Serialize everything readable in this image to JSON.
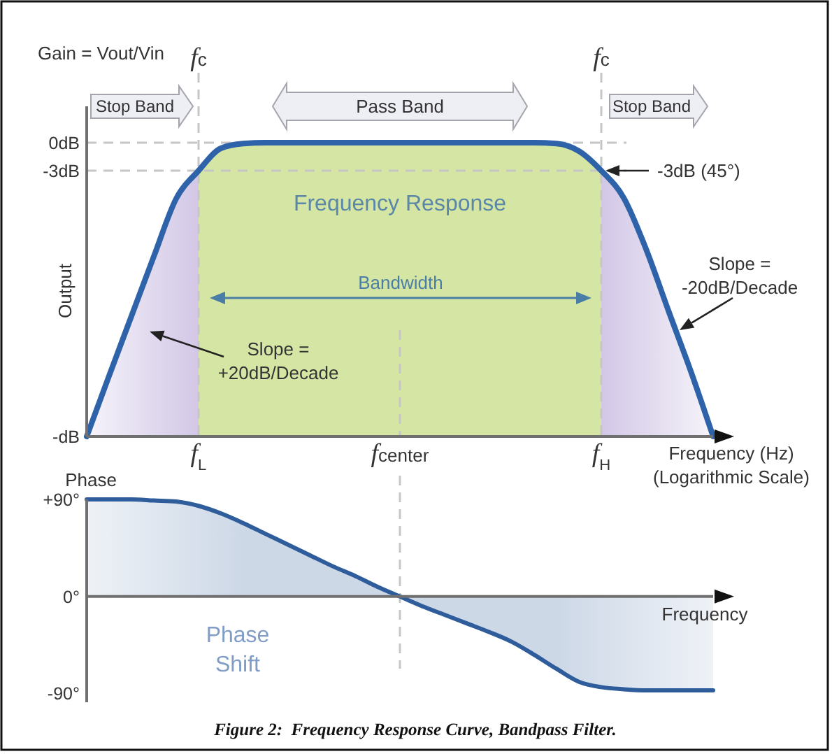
{
  "chart_data": [
    {
      "type": "line",
      "xlabel": "Frequency (Hz)\n(Logarithmic Scale)",
      "ylabel": "Output",
      "categories": [
        null,
        null,
        null,
        null,
        null,
        "f$_{L}$",
        null,
        null,
        null,
        null,
        null,
        null,
        null,
        null,
        "fcenter",
        null,
        null,
        null,
        null,
        null,
        null,
        null,
        null,
        "f$_{H}$",
        null,
        null,
        null,
        null,
        null
      ],
      "ylim": [
        -31.5,
        3.9
      ],
      "yticks": [
        {
          "value": 0,
          "label": "0dB"
        },
        {
          "value": -3,
          "label": "-3dB"
        },
        {
          "value": -31.5,
          "label": "-dB"
        }
      ],
      "series": [
        {
          "color": "#2e62a9",
          "values": [
            -31.5,
            -25,
            -18.6,
            -12.2,
            -6,
            -3,
            -0.6,
            -0.1,
            0,
            0,
            0,
            0,
            0,
            0,
            0,
            0,
            0,
            0,
            0,
            0,
            0,
            -0.1,
            -0.9,
            -3,
            -5.9,
            -11.4,
            -18,
            -24.5,
            -31.5
          ]
        }
      ],
      "ref_lines": [
        {
          "axis": "y",
          "value": 0,
          "color": "#c6c6c6",
          "line_style": "dashed"
        },
        {
          "axis": "y",
          "value": -3,
          "color": "#c6c6c6",
          "line_style": "dashed"
        },
        {
          "axis": "x",
          "value": "f$_{L}$",
          "label": "fc",
          "color": "#c6c6c6",
          "line_style": "dashed"
        },
        {
          "axis": "x",
          "value": "f$_{H}$",
          "label": "fc",
          "color": "#c6c6c6",
          "line_style": "dashed"
        },
        {
          "axis": "x",
          "value": "fcenter",
          "color": "#c6c6c6",
          "line_style": "dashed"
        }
      ],
      "annotations": [
        "Gain = Vout/Vin",
        "Stop Band",
        "Pass Band",
        "Stop Band",
        "Frequency Response",
        "Bandwidth",
        "Slope =\n+20dB/Decade",
        "Slope =\n-20dB/Decade",
        "-3dB (45°)"
      ]
    },
    {
      "type": "area",
      "xlabel": "Frequency",
      "ylabel": "Phase",
      "categories": [
        null,
        null,
        null,
        null,
        null,
        null,
        null,
        null,
        null,
        null,
        null,
        null,
        null,
        null,
        null,
        null,
        null,
        null,
        null,
        null,
        null,
        null,
        null,
        null,
        null,
        null,
        null,
        null,
        null
      ],
      "ylim": [
        -98,
        90
      ],
      "yticks": [
        {
          "value": 90,
          "label": "+90°"
        },
        {
          "value": 0,
          "label": "0°"
        },
        {
          "value": -90,
          "label": "-90°"
        }
      ],
      "series": [
        {
          "color": "#2f5d9b",
          "values": [
            90,
            90,
            90,
            89,
            88,
            84,
            77,
            68,
            58,
            48,
            38,
            28,
            19,
            9,
            0,
            -9,
            -17,
            -25,
            -33,
            -42,
            -54,
            -67,
            -79,
            -84,
            -86,
            -87,
            -87,
            -87,
            -87
          ]
        }
      ],
      "annotations": [
        "Phase\nShift",
        "Figure 2:  Frequency Response Curve, Bandpass Filter."
      ]
    }
  ]
}
